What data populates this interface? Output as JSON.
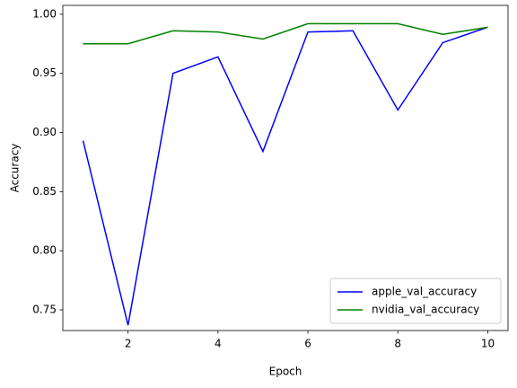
{
  "chart_data": {
    "type": "line",
    "x": [
      1,
      2,
      3,
      4,
      5,
      6,
      7,
      8,
      9,
      10
    ],
    "series": [
      {
        "name": "apple_val_accuracy",
        "color": "#0000ff",
        "values": [
          0.893,
          0.737,
          0.95,
          0.964,
          0.884,
          0.985,
          0.986,
          0.919,
          0.976,
          0.989
        ]
      },
      {
        "name": "nvidia_val_accuracy",
        "color": "#008000",
        "values": [
          0.975,
          0.975,
          0.986,
          0.985,
          0.979,
          0.992,
          0.992,
          0.992,
          0.983,
          0.989
        ]
      }
    ],
    "xlabel": "Epoch",
    "ylabel": "Accuracy",
    "xlim": [
      0.55,
      10.45
    ],
    "ylim": [
      0.7325,
      1.0075
    ],
    "xticks": [
      2,
      4,
      6,
      8,
      10
    ],
    "yticks": [
      0.75,
      {
        "value": 0.8,
        "label": "0.80"
      },
      0.85,
      {
        "value": 0.9,
        "label": "0.90"
      },
      0.95,
      {
        "value": 1.0,
        "label": "1.00"
      }
    ],
    "legend": "lower right",
    "grid": false
  }
}
